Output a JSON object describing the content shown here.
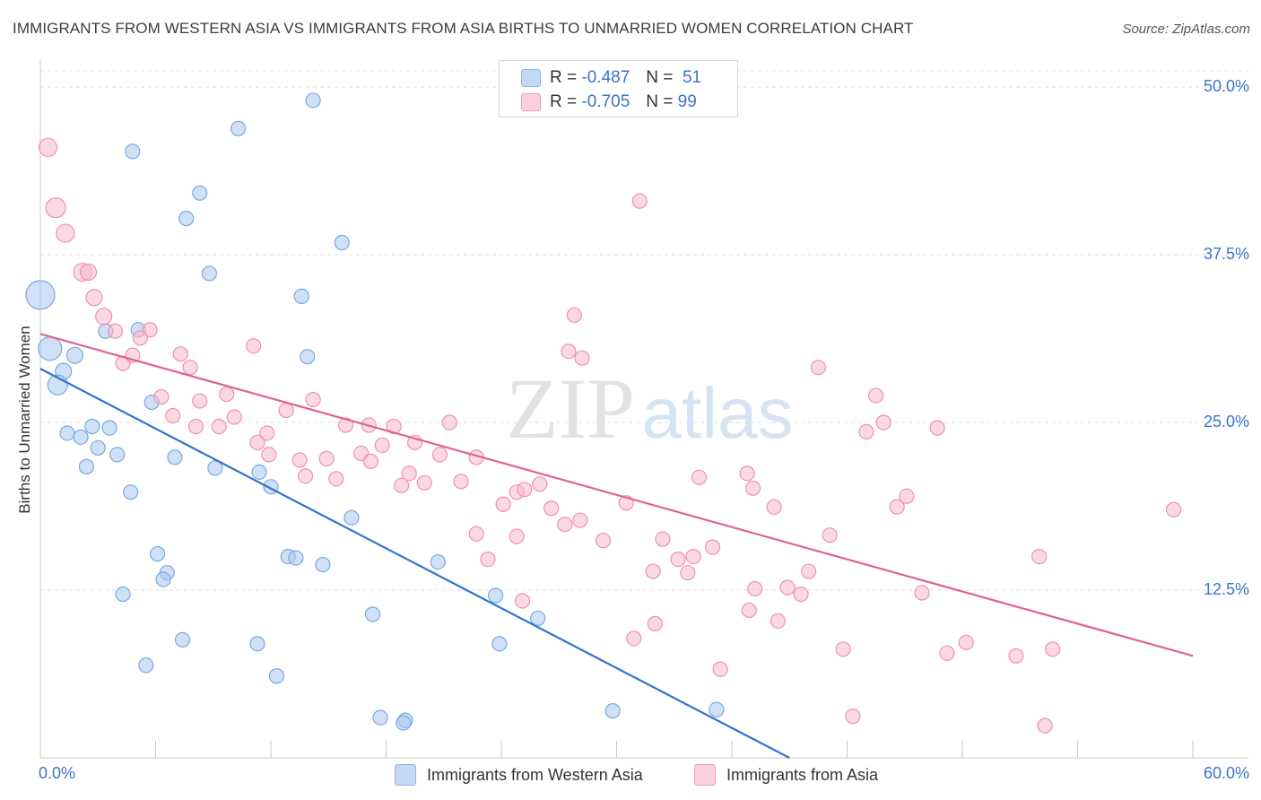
{
  "chart_data": {
    "type": "scatter",
    "title": "IMMIGRANTS FROM WESTERN ASIA VS IMMIGRANTS FROM ASIA BIRTHS TO UNMARRIED WOMEN CORRELATION CHART",
    "source": "Source: ZipAtlas.com",
    "ylabel": "Births to Unmarried Women",
    "xlabel": "",
    "xlim": [
      0,
      60
    ],
    "ylim": [
      0,
      50
    ],
    "x_tick_labels": {
      "left": "0.0%",
      "right": "60.0%"
    },
    "y_ticks": [
      {
        "value": 50,
        "label": "50.0%"
      },
      {
        "value": 37.5,
        "label": "37.5%"
      },
      {
        "value": 25,
        "label": "25.0%"
      },
      {
        "value": 12.5,
        "label": "12.5%"
      }
    ],
    "watermark": "ZIPatlas",
    "legend": {
      "rows": [
        {
          "r_label": "R =",
          "r_value": "-0.487",
          "n_label": "N =",
          "n_value": "51",
          "color": "#a9c8f0"
        },
        {
          "r_label": "R =",
          "r_value": "-0.705",
          "n_label": "N =",
          "n_value": "99",
          "color": "#f7b9cc"
        }
      ]
    },
    "series": [
      {
        "name": "Immigrants from Western Asia",
        "color": "#a9c8f0",
        "stroke": "#7aa8e0",
        "line_color": "#2f74d0",
        "trend": {
          "x0": 0,
          "y0": 29.0,
          "x1": 39,
          "y1": 0
        },
        "points": [
          [
            0.0,
            34.5,
            16
          ],
          [
            0.5,
            30.5,
            13
          ],
          [
            1.8,
            30.0,
            9
          ],
          [
            1.2,
            28.8,
            9
          ],
          [
            0.9,
            27.8,
            11
          ],
          [
            3.4,
            31.8,
            8
          ],
          [
            5.1,
            31.9,
            8
          ],
          [
            4.8,
            45.2,
            8
          ],
          [
            14.2,
            49.0,
            8
          ],
          [
            10.3,
            46.9,
            8
          ],
          [
            8.3,
            42.1,
            8
          ],
          [
            7.6,
            40.2,
            8
          ],
          [
            15.7,
            38.4,
            8
          ],
          [
            8.8,
            36.1,
            8
          ],
          [
            13.6,
            34.4,
            8
          ],
          [
            13.9,
            29.9,
            8
          ],
          [
            5.8,
            26.5,
            8
          ],
          [
            1.4,
            24.2,
            8
          ],
          [
            2.1,
            23.9,
            8
          ],
          [
            2.7,
            24.7,
            8
          ],
          [
            3.6,
            24.6,
            8
          ],
          [
            3.0,
            23.1,
            8
          ],
          [
            4.0,
            22.6,
            8
          ],
          [
            2.4,
            21.7,
            8
          ],
          [
            7.0,
            22.4,
            8
          ],
          [
            9.1,
            21.6,
            8
          ],
          [
            11.4,
            21.3,
            8
          ],
          [
            12.0,
            20.2,
            8
          ],
          [
            4.7,
            19.8,
            8
          ],
          [
            16.2,
            17.9,
            8
          ],
          [
            6.1,
            15.2,
            8
          ],
          [
            12.9,
            15.0,
            8
          ],
          [
            13.3,
            14.9,
            8
          ],
          [
            14.7,
            14.4,
            8
          ],
          [
            6.6,
            13.8,
            8
          ],
          [
            6.4,
            13.3,
            8
          ],
          [
            4.3,
            12.2,
            8
          ],
          [
            20.7,
            14.6,
            8
          ],
          [
            23.7,
            12.1,
            8
          ],
          [
            25.9,
            10.4,
            8
          ],
          [
            17.3,
            10.7,
            8
          ],
          [
            7.4,
            8.8,
            8
          ],
          [
            11.3,
            8.5,
            8
          ],
          [
            23.9,
            8.5,
            8
          ],
          [
            5.5,
            6.9,
            8
          ],
          [
            12.3,
            6.1,
            8
          ],
          [
            17.7,
            3.0,
            8
          ],
          [
            19.0,
            2.8,
            8
          ],
          [
            18.9,
            2.6,
            8
          ],
          [
            29.8,
            3.5,
            8
          ],
          [
            35.2,
            3.6,
            8
          ]
        ]
      },
      {
        "name": "Immigrants from Asia",
        "color": "#f7b9cc",
        "stroke": "#ef92ad",
        "line_color": "#e0638f",
        "trend": {
          "x0": 0,
          "y0": 31.6,
          "x1": 60,
          "y1": 7.6
        },
        "points": [
          [
            0.4,
            45.5,
            10
          ],
          [
            0.8,
            41.0,
            11
          ],
          [
            1.3,
            39.1,
            10
          ],
          [
            2.2,
            36.2,
            10
          ],
          [
            2.5,
            36.2,
            9
          ],
          [
            2.8,
            34.3,
            9
          ],
          [
            3.3,
            32.9,
            9
          ],
          [
            3.9,
            31.8,
            8
          ],
          [
            5.7,
            31.9,
            8
          ],
          [
            5.2,
            31.3,
            8
          ],
          [
            4.3,
            29.4,
            8
          ],
          [
            4.8,
            30.0,
            8
          ],
          [
            7.3,
            30.1,
            8
          ],
          [
            7.8,
            29.1,
            8
          ],
          [
            11.1,
            30.7,
            8
          ],
          [
            6.3,
            26.9,
            8
          ],
          [
            8.3,
            26.6,
            8
          ],
          [
            9.7,
            27.1,
            8
          ],
          [
            14.2,
            26.7,
            8
          ],
          [
            12.8,
            25.9,
            8
          ],
          [
            6.9,
            25.5,
            8
          ],
          [
            10.1,
            25.4,
            8
          ],
          [
            8.1,
            24.7,
            8
          ],
          [
            9.3,
            24.7,
            8
          ],
          [
            11.8,
            24.2,
            8
          ],
          [
            15.9,
            24.8,
            8
          ],
          [
            17.1,
            24.8,
            8
          ],
          [
            18.4,
            24.7,
            8
          ],
          [
            21.3,
            25.0,
            8
          ],
          [
            11.3,
            23.5,
            8
          ],
          [
            17.8,
            23.3,
            8
          ],
          [
            19.5,
            23.5,
            8
          ],
          [
            11.9,
            22.6,
            8
          ],
          [
            13.5,
            22.2,
            8
          ],
          [
            14.9,
            22.3,
            8
          ],
          [
            16.7,
            22.7,
            8
          ],
          [
            17.2,
            22.1,
            8
          ],
          [
            20.8,
            22.6,
            8
          ],
          [
            22.7,
            22.4,
            8
          ],
          [
            13.8,
            21.0,
            8
          ],
          [
            15.4,
            20.8,
            8
          ],
          [
            19.2,
            21.2,
            8
          ],
          [
            18.8,
            20.3,
            8
          ],
          [
            20.0,
            20.5,
            8
          ],
          [
            21.9,
            20.6,
            8
          ],
          [
            24.8,
            19.8,
            8
          ],
          [
            24.1,
            18.9,
            8
          ],
          [
            26.0,
            20.4,
            8
          ],
          [
            25.2,
            20.0,
            8
          ],
          [
            26.6,
            18.6,
            8
          ],
          [
            27.3,
            17.4,
            8
          ],
          [
            28.1,
            17.7,
            8
          ],
          [
            30.5,
            19.0,
            8
          ],
          [
            22.7,
            16.7,
            8
          ],
          [
            24.8,
            16.5,
            8
          ],
          [
            29.3,
            16.2,
            8
          ],
          [
            32.4,
            16.3,
            8
          ],
          [
            34.0,
            15.0,
            8
          ],
          [
            35.0,
            15.7,
            8
          ],
          [
            23.3,
            14.8,
            8
          ],
          [
            31.9,
            13.9,
            8
          ],
          [
            33.2,
            14.8,
            8
          ],
          [
            33.7,
            13.8,
            8
          ],
          [
            37.2,
            12.6,
            8
          ],
          [
            38.9,
            12.7,
            8
          ],
          [
            40.0,
            13.9,
            8
          ],
          [
            39.6,
            12.2,
            8
          ],
          [
            25.1,
            11.7,
            8
          ],
          [
            36.9,
            11.0,
            8
          ],
          [
            38.4,
            10.2,
            8
          ],
          [
            32.0,
            10.0,
            8
          ],
          [
            30.9,
            8.9,
            8
          ],
          [
            35.4,
            6.6,
            8
          ],
          [
            34.3,
            20.9,
            8
          ],
          [
            36.8,
            21.2,
            8
          ],
          [
            37.1,
            20.1,
            8
          ],
          [
            38.2,
            18.7,
            8
          ],
          [
            41.1,
            16.6,
            8
          ],
          [
            43.0,
            24.3,
            8
          ],
          [
            43.5,
            27.0,
            8
          ],
          [
            43.9,
            25.0,
            8
          ],
          [
            44.6,
            18.7,
            8
          ],
          [
            45.1,
            19.5,
            8
          ],
          [
            46.7,
            24.6,
            8
          ],
          [
            40.5,
            29.1,
            8
          ],
          [
            45.9,
            12.3,
            8
          ],
          [
            41.8,
            8.1,
            8
          ],
          [
            47.2,
            7.8,
            8
          ],
          [
            48.2,
            8.6,
            8
          ],
          [
            50.8,
            7.6,
            8
          ],
          [
            52.0,
            15.0,
            8
          ],
          [
            52.7,
            8.1,
            8
          ],
          [
            52.3,
            2.4,
            8
          ],
          [
            59.0,
            18.5,
            8
          ],
          [
            42.3,
            3.1,
            8
          ],
          [
            27.8,
            33.0,
            8
          ],
          [
            28.2,
            29.8,
            8
          ],
          [
            27.5,
            30.3,
            8
          ],
          [
            31.2,
            41.5,
            8
          ]
        ]
      }
    ]
  },
  "bottom_legend": [
    {
      "label": "Immigrants from Western Asia",
      "color": "#a9c8f0"
    },
    {
      "label": "Immigrants from Asia",
      "color": "#f7b9cc"
    }
  ]
}
